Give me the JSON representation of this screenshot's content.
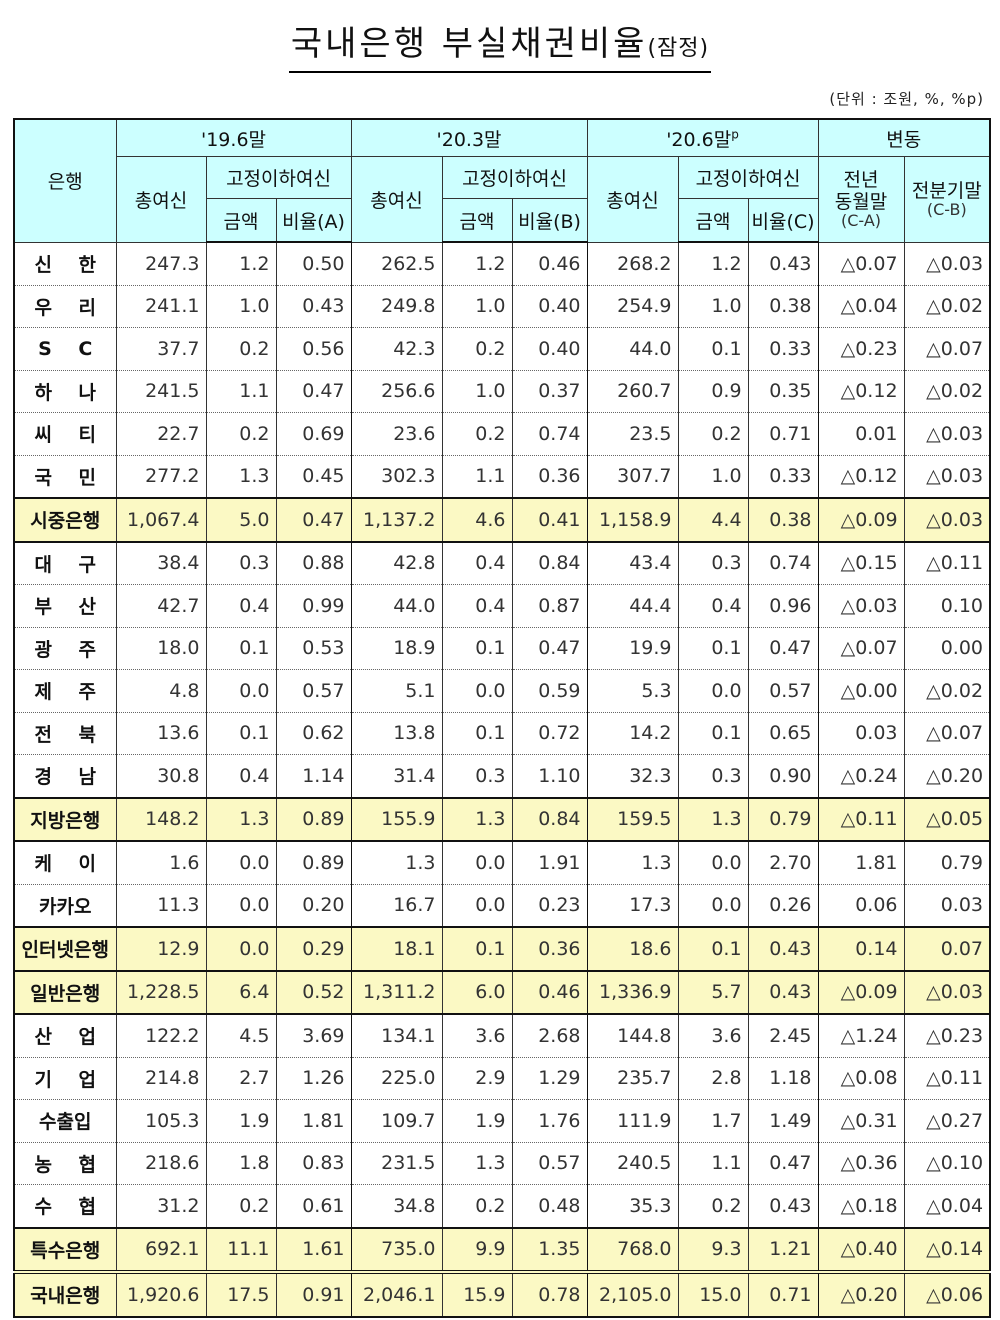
{
  "title": {
    "main": "국내은행 부실채권비율",
    "suffix": "(잠정)"
  },
  "unit": "(단위 : 조원, %, %p)",
  "header": {
    "bank": "은행",
    "periods": [
      {
        "label": "'19.6말",
        "sup": ""
      },
      {
        "label": "'20.3말",
        "sup": ""
      },
      {
        "label": "'20.6말",
        "sup": "p"
      }
    ],
    "change": "변동",
    "total_loans": "총여신",
    "substandard": "고정이하여신",
    "amount": "금액",
    "ratio_a": "비율(A)",
    "ratio_b": "비율(B)",
    "ratio_c": "비율(C)",
    "yoy_line1": "전년",
    "yoy_line2": "동월말",
    "yoy_formula": "(C-A)",
    "qoq_label": "전분기말",
    "qoq_formula": "(C-B)"
  },
  "rows": [
    {
      "name": "신 한",
      "type": "bank",
      "v": [
        "247.3",
        "1.2",
        "0.50",
        "262.5",
        "1.2",
        "0.46",
        "268.2",
        "1.2",
        "0.43",
        "△0.07",
        "△0.03"
      ]
    },
    {
      "name": "우 리",
      "type": "bank",
      "v": [
        "241.1",
        "1.0",
        "0.43",
        "249.8",
        "1.0",
        "0.40",
        "254.9",
        "1.0",
        "0.38",
        "△0.04",
        "△0.02"
      ]
    },
    {
      "name": "S C",
      "type": "bank",
      "v": [
        "37.7",
        "0.2",
        "0.56",
        "42.3",
        "0.2",
        "0.40",
        "44.0",
        "0.1",
        "0.33",
        "△0.23",
        "△0.07"
      ]
    },
    {
      "name": "하 나",
      "type": "bank",
      "v": [
        "241.5",
        "1.1",
        "0.47",
        "256.6",
        "1.0",
        "0.37",
        "260.7",
        "0.9",
        "0.35",
        "△0.12",
        "△0.02"
      ]
    },
    {
      "name": "씨 티",
      "type": "bank",
      "v": [
        "22.7",
        "0.2",
        "0.69",
        "23.6",
        "0.2",
        "0.74",
        "23.5",
        "0.2",
        "0.71",
        "0.01",
        "△0.03"
      ]
    },
    {
      "name": "국 민",
      "type": "bank",
      "v": [
        "277.2",
        "1.3",
        "0.45",
        "302.3",
        "1.1",
        "0.36",
        "307.7",
        "1.0",
        "0.33",
        "△0.12",
        "△0.03"
      ]
    },
    {
      "name": "시중은행",
      "type": "subtotal",
      "v": [
        "1,067.4",
        "5.0",
        "0.47",
        "1,137.2",
        "4.6",
        "0.41",
        "1,158.9",
        "4.4",
        "0.38",
        "△0.09",
        "△0.03"
      ]
    },
    {
      "name": "대 구",
      "type": "bank",
      "v": [
        "38.4",
        "0.3",
        "0.88",
        "42.8",
        "0.4",
        "0.84",
        "43.4",
        "0.3",
        "0.74",
        "△0.15",
        "△0.11"
      ]
    },
    {
      "name": "부 산",
      "type": "bank",
      "v": [
        "42.7",
        "0.4",
        "0.99",
        "44.0",
        "0.4",
        "0.87",
        "44.4",
        "0.4",
        "0.96",
        "△0.03",
        "0.10"
      ]
    },
    {
      "name": "광 주",
      "type": "bank",
      "v": [
        "18.0",
        "0.1",
        "0.53",
        "18.9",
        "0.1",
        "0.47",
        "19.9",
        "0.1",
        "0.47",
        "△0.07",
        "0.00"
      ]
    },
    {
      "name": "제 주",
      "type": "bank",
      "v": [
        "4.8",
        "0.0",
        "0.57",
        "5.1",
        "0.0",
        "0.59",
        "5.3",
        "0.0",
        "0.57",
        "△0.00",
        "△0.02"
      ]
    },
    {
      "name": "전 북",
      "type": "bank",
      "v": [
        "13.6",
        "0.1",
        "0.62",
        "13.8",
        "0.1",
        "0.72",
        "14.2",
        "0.1",
        "0.65",
        "0.03",
        "△0.07"
      ]
    },
    {
      "name": "경 남",
      "type": "bank",
      "v": [
        "30.8",
        "0.4",
        "1.14",
        "31.4",
        "0.3",
        "1.10",
        "32.3",
        "0.3",
        "0.90",
        "△0.24",
        "△0.20"
      ]
    },
    {
      "name": "지방은행",
      "type": "subtotal",
      "v": [
        "148.2",
        "1.3",
        "0.89",
        "155.9",
        "1.3",
        "0.84",
        "159.5",
        "1.3",
        "0.79",
        "△0.11",
        "△0.05"
      ]
    },
    {
      "name": "케 이",
      "type": "bank",
      "v": [
        "1.6",
        "0.0",
        "0.89",
        "1.3",
        "0.0",
        "1.91",
        "1.3",
        "0.0",
        "2.70",
        "1.81",
        "0.79"
      ]
    },
    {
      "name": "카카오",
      "type": "bank",
      "v": [
        "11.3",
        "0.0",
        "0.20",
        "16.7",
        "0.0",
        "0.23",
        "17.3",
        "0.0",
        "0.26",
        "0.06",
        "0.03"
      ]
    },
    {
      "name": "인터넷은행",
      "type": "subtotal",
      "v": [
        "12.9",
        "0.0",
        "0.29",
        "18.1",
        "0.1",
        "0.36",
        "18.6",
        "0.1",
        "0.43",
        "0.14",
        "0.07"
      ]
    },
    {
      "name": "일반은행",
      "type": "subtotal",
      "v": [
        "1,228.5",
        "6.4",
        "0.52",
        "1,311.2",
        "6.0",
        "0.46",
        "1,336.9",
        "5.7",
        "0.43",
        "△0.09",
        "△0.03"
      ]
    },
    {
      "name": "산 업",
      "type": "bank",
      "v": [
        "122.2",
        "4.5",
        "3.69",
        "134.1",
        "3.6",
        "2.68",
        "144.8",
        "3.6",
        "2.45",
        "△1.24",
        "△0.23"
      ]
    },
    {
      "name": "기 업",
      "type": "bank",
      "v": [
        "214.8",
        "2.7",
        "1.26",
        "225.0",
        "2.9",
        "1.29",
        "235.7",
        "2.8",
        "1.18",
        "△0.08",
        "△0.11"
      ]
    },
    {
      "name": "수출입",
      "type": "bank",
      "v": [
        "105.3",
        "1.9",
        "1.81",
        "109.7",
        "1.9",
        "1.76",
        "111.9",
        "1.7",
        "1.49",
        "△0.31",
        "△0.27"
      ]
    },
    {
      "name": "농 협",
      "type": "bank",
      "v": [
        "218.6",
        "1.8",
        "0.83",
        "231.5",
        "1.3",
        "0.57",
        "240.5",
        "1.1",
        "0.47",
        "△0.36",
        "△0.10"
      ]
    },
    {
      "name": "수 협",
      "type": "bank",
      "v": [
        "31.2",
        "0.2",
        "0.61",
        "34.8",
        "0.2",
        "0.48",
        "35.3",
        "0.2",
        "0.43",
        "△0.18",
        "△0.04"
      ]
    },
    {
      "name": "특수은행",
      "type": "subtotal",
      "v": [
        "692.1",
        "11.1",
        "1.61",
        "735.0",
        "9.9",
        "1.35",
        "768.0",
        "9.3",
        "1.21",
        "△0.40",
        "△0.14"
      ]
    },
    {
      "name": "국내은행",
      "type": "total",
      "v": [
        "1,920.6",
        "17.5",
        "0.91",
        "2,046.1",
        "15.9",
        "0.78",
        "2,105.0",
        "15.0",
        "0.71",
        "△0.20",
        "△0.06"
      ]
    }
  ],
  "colors": {
    "header_bg": "#ccffff",
    "subtotal_bg": "#fbf9c4",
    "border": "#111111"
  }
}
